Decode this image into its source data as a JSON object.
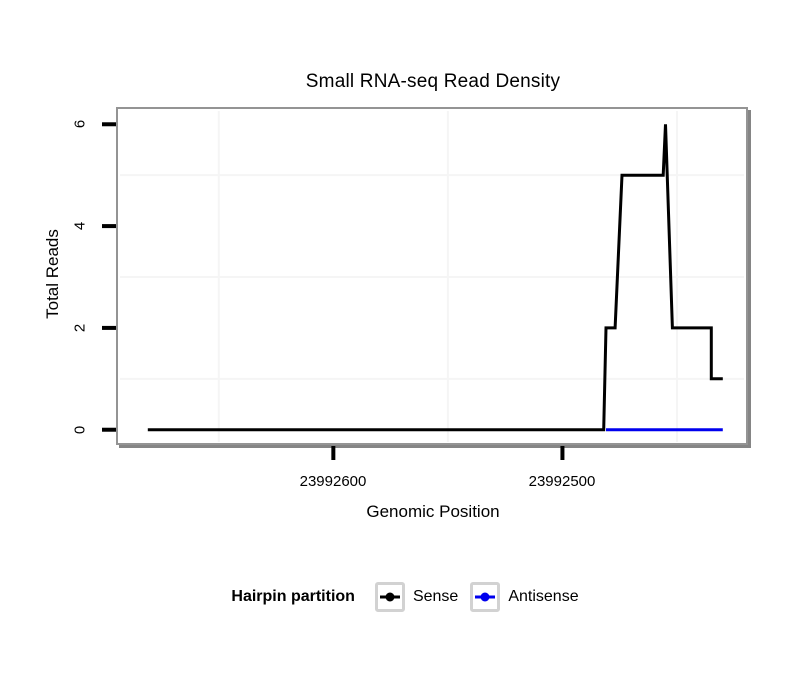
{
  "chart_data": {
    "type": "line",
    "title": "Small RNA-seq Read Density",
    "xlabel": "Genomic Position",
    "ylabel": "Total Reads",
    "x_axis_reversed": true,
    "xlim": [
      23992694,
      23992419
    ],
    "ylim": [
      -0.3,
      6.3
    ],
    "grid": "minor-only-faint",
    "legend_position": "bottom",
    "x_ticks": [
      {
        "value": 23992600,
        "label": "23992600"
      },
      {
        "value": 23992500,
        "label": "23992500"
      }
    ],
    "y_ticks": [
      {
        "value": 0,
        "label": "0"
      },
      {
        "value": 2,
        "label": "2"
      },
      {
        "value": 4,
        "label": "4"
      },
      {
        "value": 6,
        "label": "6"
      }
    ],
    "minor_grid_x": [
      23992650,
      23992550,
      23992450
    ],
    "minor_grid_y": [
      1,
      3,
      5
    ],
    "series": [
      {
        "name": "Sense",
        "color": "#000000",
        "points": [
          [
            23992681,
            0
          ],
          [
            23992482,
            0
          ],
          [
            23992481,
            2
          ],
          [
            23992477,
            2
          ],
          [
            23992474,
            5
          ],
          [
            23992456,
            5
          ],
          [
            23992455,
            6
          ],
          [
            23992452,
            2
          ],
          [
            23992435,
            2
          ],
          [
            23992435,
            1
          ],
          [
            23992430,
            1
          ]
        ]
      },
      {
        "name": "Antisense",
        "color": "#0000EE",
        "points": [
          [
            23992481,
            0
          ],
          [
            23992430,
            0
          ]
        ]
      }
    ]
  },
  "legend": {
    "title": "Hairpin partition",
    "items": [
      {
        "label": "Sense",
        "color": "#000000"
      },
      {
        "label": "Antisense",
        "color": "#0000EE"
      }
    ]
  },
  "colors": {
    "panel_border": "#949494",
    "panel_shadow": "#858585",
    "minor_gridline": "#f5f5f5",
    "tick": "#000000",
    "legend_key_border": "#d2d2d2"
  }
}
